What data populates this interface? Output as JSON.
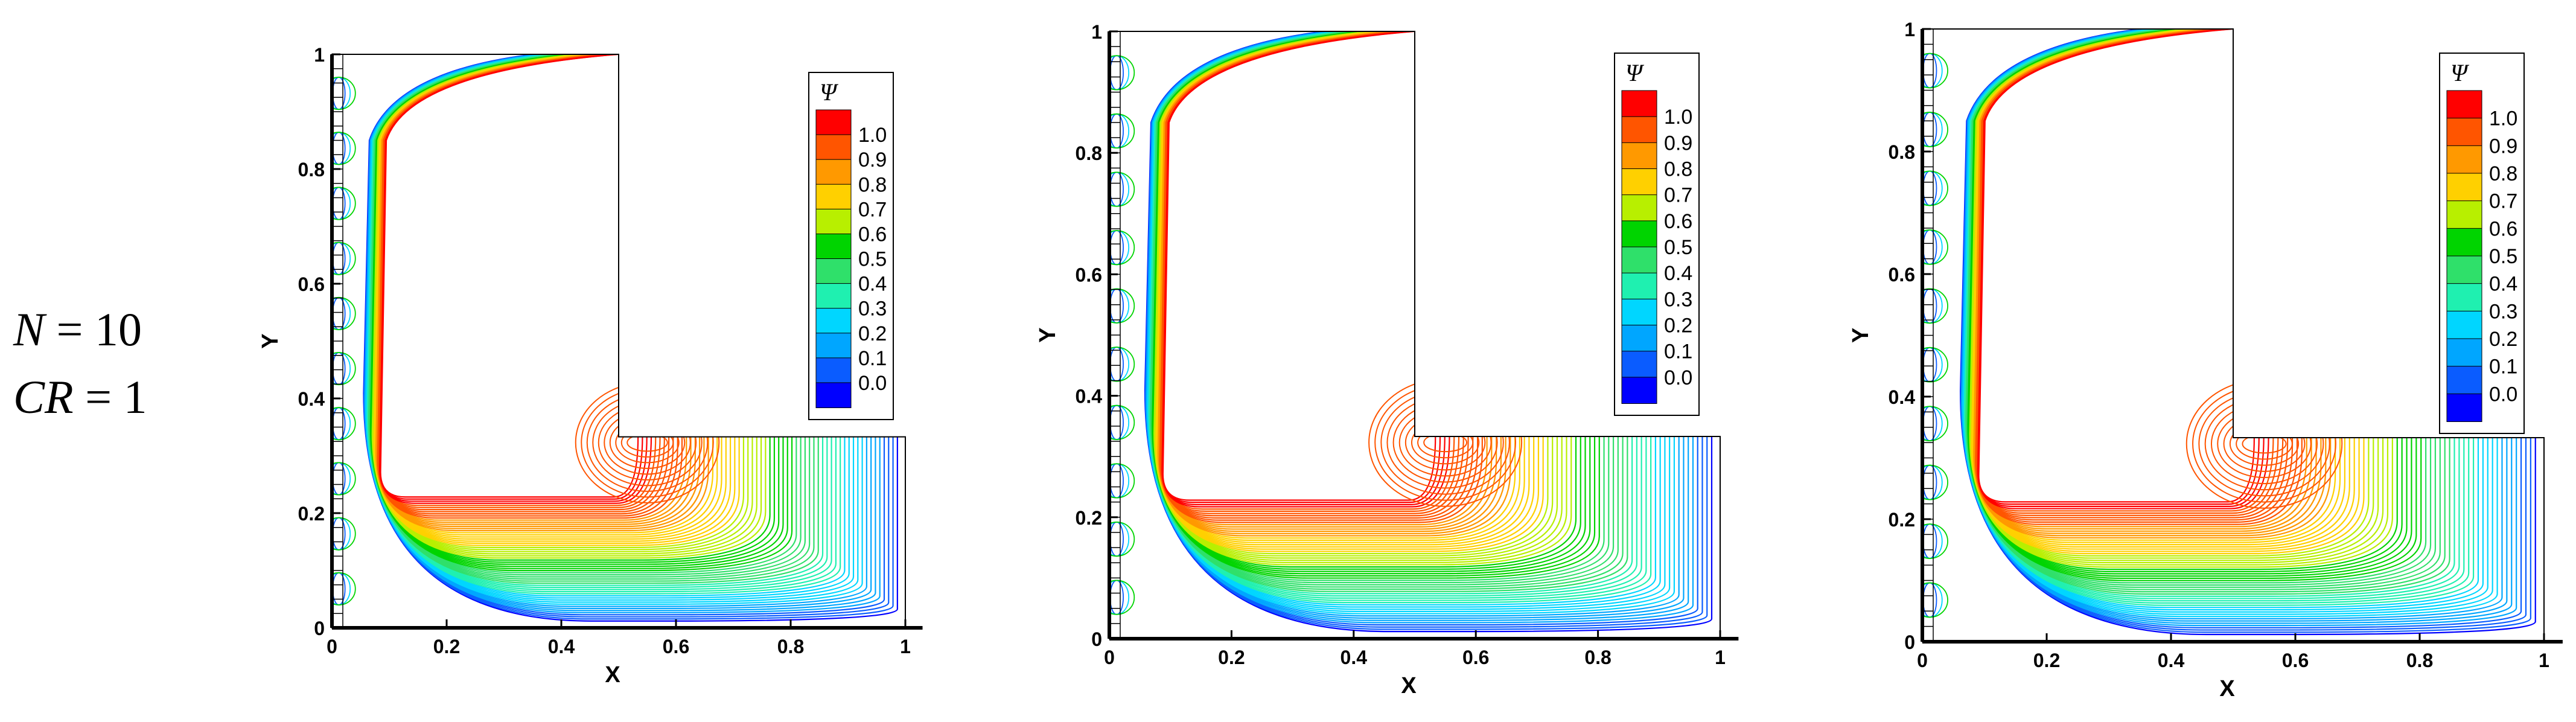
{
  "params": {
    "line1": {
      "var": "N",
      "eq": " = ",
      "val": "10"
    },
    "line2": {
      "var": "CR",
      "eq": " = ",
      "val": "1"
    }
  },
  "colors": [
    "#0000ff",
    "#0a5cff",
    "#00a6ff",
    "#00d6ff",
    "#1ff0b0",
    "#2fe06a",
    "#00d400",
    "#b8ef00",
    "#ffd000",
    "#ff9900",
    "#ff5500",
    "#ff0000"
  ],
  "chart_data": [
    {
      "type": "contour",
      "xlabel": "X",
      "ylabel": "Y",
      "xlim": [
        0,
        1
      ],
      "ylim": [
        0,
        1
      ],
      "xticks": [
        "0",
        "0.2",
        "0.4",
        "0.6",
        "0.8",
        "1"
      ],
      "yticks": [
        "0",
        "0.2",
        "0.4",
        "0.6",
        "0.8",
        "1"
      ],
      "legend": {
        "title": "Ψ",
        "levels": [
          "1.0",
          "0.9",
          "0.8",
          "0.7",
          "0.6",
          "0.5",
          "0.4",
          "0.3",
          "0.2",
          "0.1",
          "0.0"
        ]
      },
      "domain": {
        "shape": "L-shaped cavity",
        "notch_x": [
          0.5,
          1
        ],
        "notch_y": [
          0.333,
          1
        ]
      },
      "heated_wall_segments": 10
    },
    {
      "type": "contour",
      "xlabel": "X",
      "ylabel": "Y",
      "xlim": [
        0,
        1
      ],
      "ylim": [
        0,
        1
      ],
      "xticks": [
        "0",
        "0.2",
        "0.4",
        "0.6",
        "0.8",
        "1"
      ],
      "yticks": [
        "0",
        "0.2",
        "0.4",
        "0.6",
        "0.8",
        "1"
      ],
      "legend": {
        "title": "Ψ",
        "levels": [
          "1.0",
          "0.9",
          "0.8",
          "0.7",
          "0.6",
          "0.5",
          "0.4",
          "0.3",
          "0.2",
          "0.1",
          "0.0"
        ]
      },
      "domain": {
        "shape": "L-shaped cavity",
        "notch_x": [
          0.5,
          1
        ],
        "notch_y": [
          0.333,
          1
        ]
      },
      "heated_wall_segments": 10
    },
    {
      "type": "contour",
      "xlabel": "X",
      "ylabel": "Y",
      "xlim": [
        0,
        1
      ],
      "ylim": [
        0,
        1
      ],
      "xticks": [
        "0",
        "0.2",
        "0.4",
        "0.6",
        "0.8",
        "1"
      ],
      "yticks": [
        "0",
        "0.2",
        "0.4",
        "0.6",
        "0.8",
        "1"
      ],
      "legend": {
        "title": "Ψ",
        "levels": [
          "1.0",
          "0.9",
          "0.8",
          "0.7",
          "0.6",
          "0.5",
          "0.4",
          "0.3",
          "0.2",
          "0.1",
          "0.0"
        ]
      },
      "domain": {
        "shape": "L-shaped cavity",
        "notch_x": [
          0.5,
          1
        ],
        "notch_y": [
          0.333,
          1
        ]
      },
      "heated_wall_segments": 10
    }
  ]
}
